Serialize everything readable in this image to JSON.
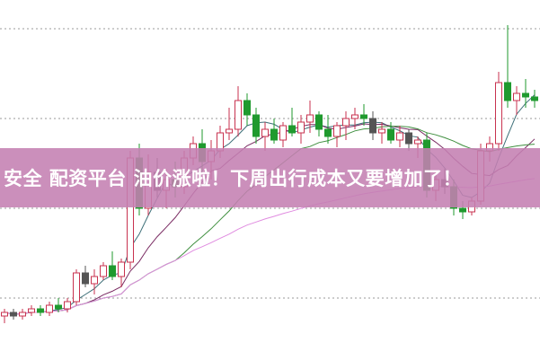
{
  "banner": {
    "text": "安全 配资平台 油价涨啦！下周出行成本又要增加了！"
  },
  "chart_data": {
    "type": "candlestick",
    "title": "",
    "xlabel": "",
    "ylabel": "",
    "ylim": [
      0,
      100
    ],
    "grid": true,
    "colors": {
      "up": "#c8324f",
      "down": "#1f9a2e",
      "ma5": "#3d6f78",
      "ma10": "#7a2c63",
      "ma20": "#3f8f3f",
      "ma60": "#e08ce0",
      "banner": "#c480b2"
    },
    "moving_averages": [
      5,
      10,
      20,
      60
    ],
    "candles_ohlc": [
      [
        12,
        14,
        10,
        13
      ],
      [
        13,
        14,
        11,
        12
      ],
      [
        12,
        14,
        11,
        13
      ],
      [
        13,
        15,
        12,
        14
      ],
      [
        14,
        15,
        12,
        13
      ],
      [
        13,
        16,
        12,
        15
      ],
      [
        15,
        17,
        13,
        14
      ],
      [
        14,
        17,
        13,
        16
      ],
      [
        16,
        25,
        15,
        24
      ],
      [
        24,
        26,
        20,
        21
      ],
      [
        21,
        25,
        18,
        23
      ],
      [
        23,
        27,
        22,
        26
      ],
      [
        26,
        30,
        22,
        23
      ],
      [
        23,
        28,
        20,
        27
      ],
      [
        27,
        58,
        25,
        56
      ],
      [
        56,
        60,
        40,
        42
      ],
      [
        42,
        57,
        40,
        52
      ],
      [
        52,
        56,
        45,
        47
      ],
      [
        47,
        53,
        42,
        50
      ],
      [
        50,
        55,
        45,
        48
      ],
      [
        48,
        58,
        46,
        56
      ],
      [
        56,
        62,
        54,
        60
      ],
      [
        60,
        64,
        52,
        55
      ],
      [
        55,
        61,
        50,
        58
      ],
      [
        58,
        65,
        56,
        63
      ],
      [
        63,
        70,
        61,
        64
      ],
      [
        64,
        76,
        62,
        72
      ],
      [
        72,
        74,
        65,
        68
      ],
      [
        68,
        70,
        60,
        62
      ],
      [
        62,
        66,
        58,
        64
      ],
      [
        64,
        67,
        60,
        61
      ],
      [
        61,
        66,
        59,
        65
      ],
      [
        65,
        70,
        62,
        63
      ],
      [
        63,
        68,
        60,
        66
      ],
      [
        66,
        72,
        63,
        68
      ],
      [
        68,
        69,
        62,
        64
      ],
      [
        64,
        68,
        60,
        62
      ],
      [
        62,
        66,
        59,
        65
      ],
      [
        65,
        69,
        61,
        67
      ],
      [
        67,
        70,
        64,
        68
      ],
      [
        68,
        71,
        65,
        67
      ],
      [
        67,
        69,
        61,
        63
      ],
      [
        63,
        66,
        60,
        64
      ],
      [
        64,
        66,
        60,
        61
      ],
      [
        61,
        65,
        59,
        63
      ],
      [
        63,
        64,
        58,
        60
      ],
      [
        60,
        62,
        56,
        61
      ],
      [
        61,
        63,
        45,
        47
      ],
      [
        47,
        52,
        44,
        50
      ],
      [
        50,
        53,
        46,
        48
      ],
      [
        48,
        50,
        40,
        42
      ],
      [
        42,
        44,
        39,
        41
      ],
      [
        41,
        45,
        40,
        44
      ],
      [
        44,
        60,
        43,
        58
      ],
      [
        58,
        62,
        55,
        60
      ],
      [
        60,
        80,
        58,
        77
      ],
      [
        77,
        93,
        70,
        72
      ],
      [
        72,
        76,
        68,
        74
      ],
      [
        74,
        78,
        70,
        73
      ],
      [
        73,
        75,
        70,
        72
      ]
    ],
    "gridlines": [
      17,
      42,
      67,
      92
    ]
  }
}
